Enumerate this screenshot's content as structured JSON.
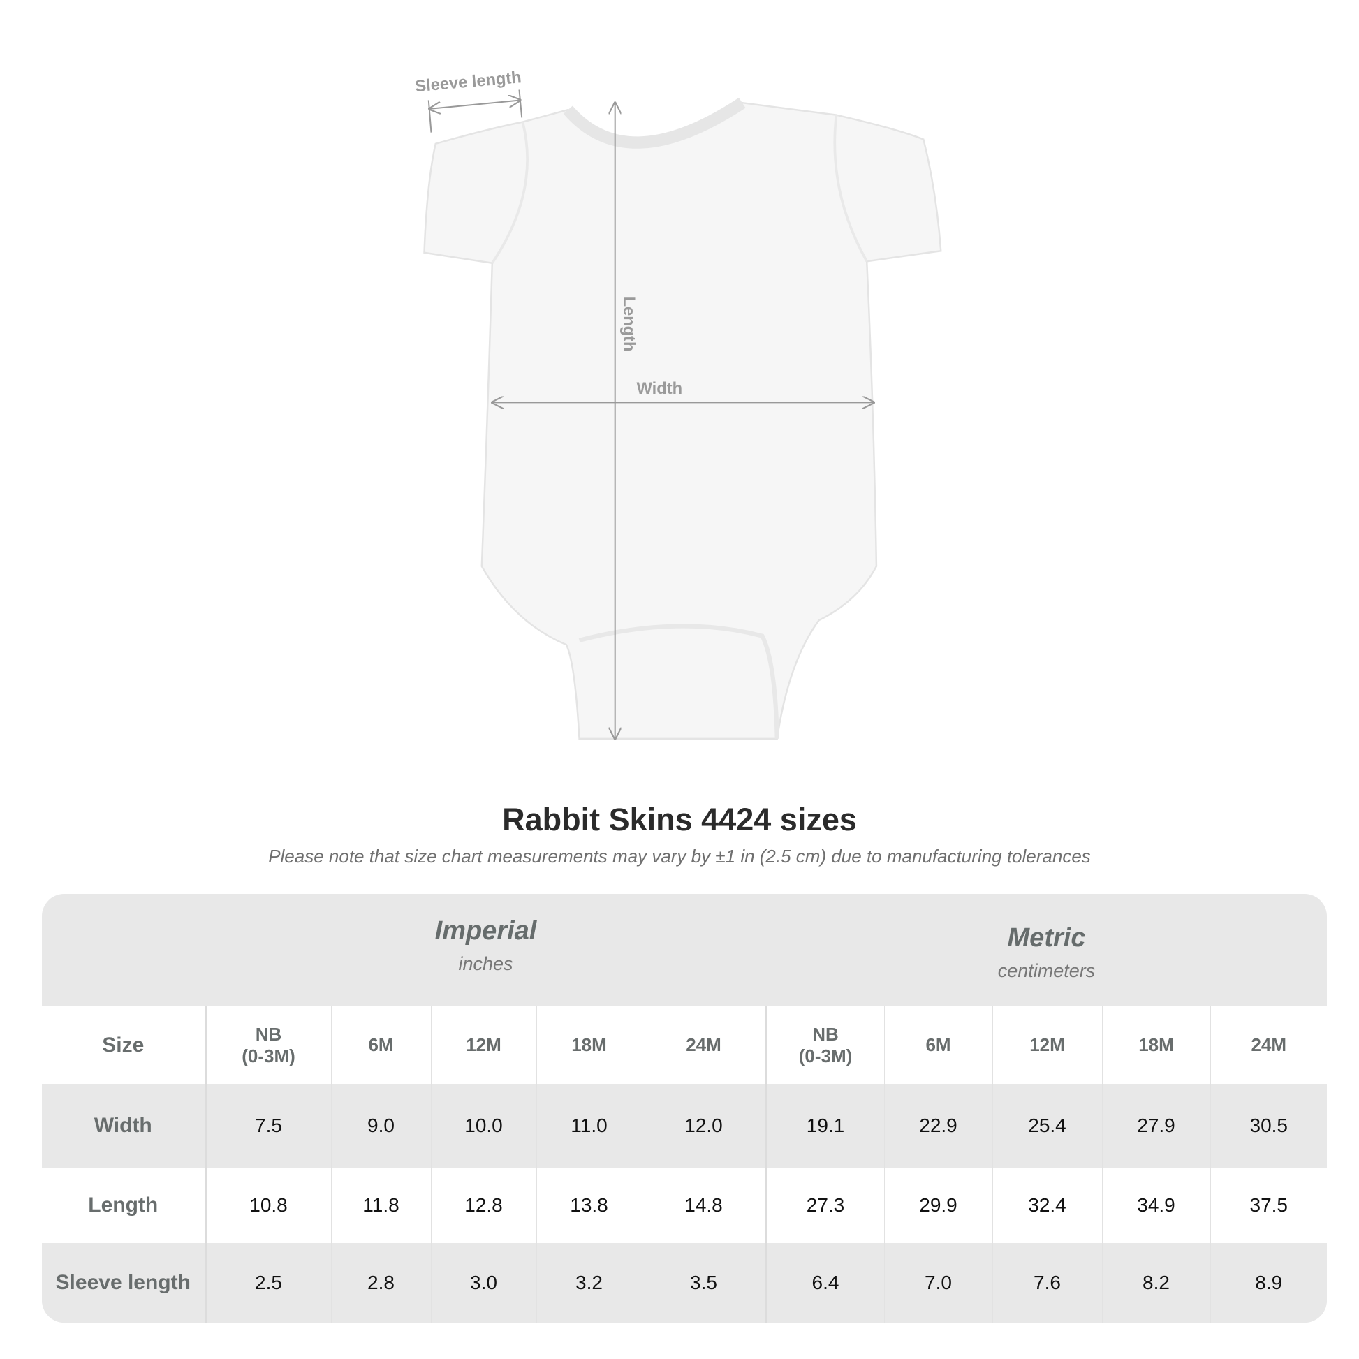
{
  "diagram": {
    "labels": {
      "sleeve": "Sleeve length",
      "length": "Length",
      "width": "Width"
    },
    "line_color": "#999999"
  },
  "title": "Rabbit Skins 4424 sizes",
  "note": "Please note that size chart measurements may vary by ±1 in (2.5 cm) due to manufacturing tolerances",
  "table": {
    "imperial": {
      "name": "Imperial",
      "unit": "inches"
    },
    "metric": {
      "name": "Metric",
      "unit": "centimeters"
    },
    "size_label": "Size",
    "sizes": [
      {
        "l1": "NB",
        "l2": "(0-3M)"
      },
      {
        "l1": "6M"
      },
      {
        "l1": "12M"
      },
      {
        "l1": "18M"
      },
      {
        "l1": "24M"
      }
    ],
    "rows": [
      {
        "label": "Width",
        "imperial": [
          "7.5",
          "9.0",
          "10.0",
          "11.0",
          "12.0"
        ],
        "metric": [
          "19.1",
          "22.9",
          "25.4",
          "27.9",
          "30.5"
        ]
      },
      {
        "label": "Length",
        "imperial": [
          "10.8",
          "11.8",
          "12.8",
          "13.8",
          "14.8"
        ],
        "metric": [
          "27.3",
          "29.9",
          "32.4",
          "34.9",
          "37.5"
        ]
      },
      {
        "label": "Sleeve length",
        "imperial": [
          "2.5",
          "2.8",
          "3.0",
          "3.2",
          "3.5"
        ],
        "metric": [
          "6.4",
          "7.0",
          "7.6",
          "8.2",
          "8.9"
        ]
      }
    ],
    "colors": {
      "band": "#e8e8e8",
      "header_text": "#686d6d"
    }
  }
}
